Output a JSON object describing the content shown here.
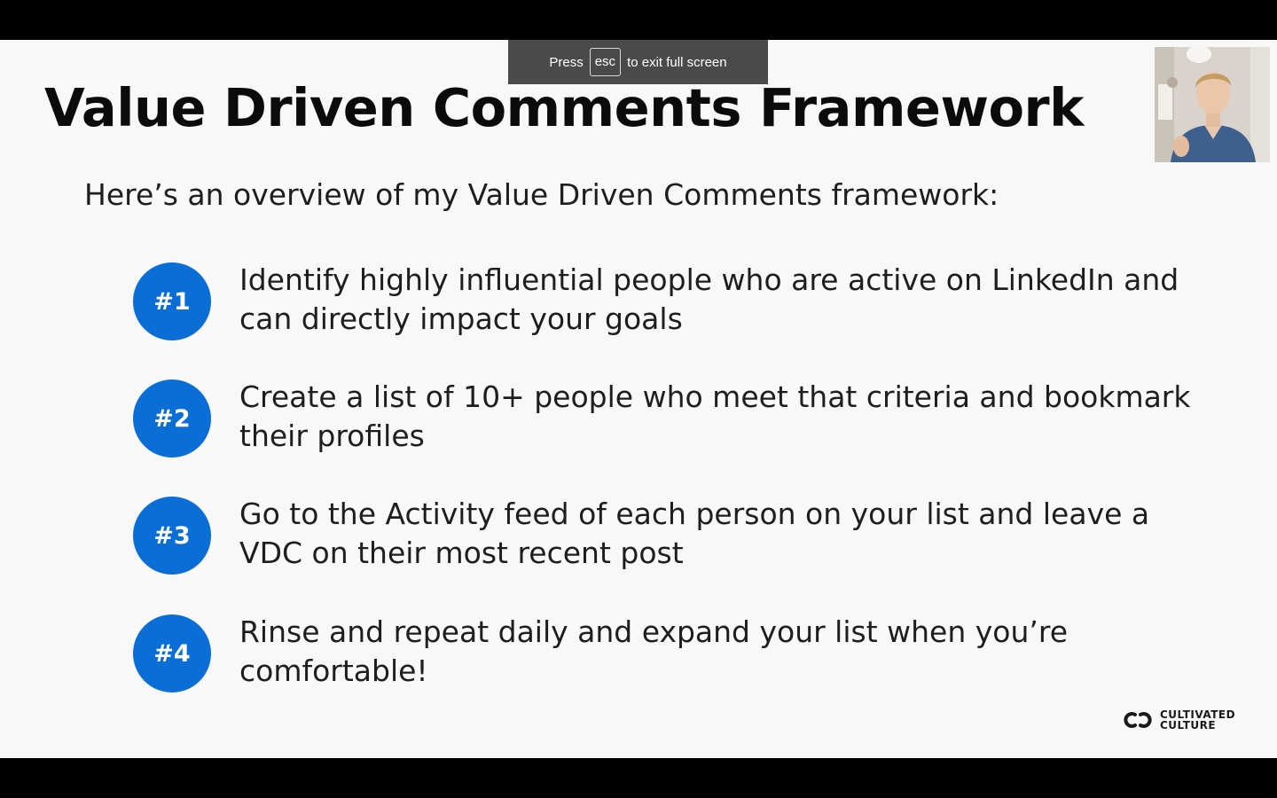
{
  "fullscreen_notice": {
    "press_label": "Press",
    "key_label": "esc",
    "suffix_label": "to exit full screen"
  },
  "slide": {
    "title": "Value Driven Comments Framework",
    "subtitle": "Here’s an overview of my Value Driven Comments framework:",
    "steps": [
      {
        "badge": "#1",
        "text": "Identify highly influential people who are active on LinkedIn and can directly impact your goals"
      },
      {
        "badge": "#2",
        "text": "Create a list of 10+ people who meet that criteria and bookmark their profiles"
      },
      {
        "badge": "#3",
        "text": "Go to the Activity feed of each person on your list and leave a VDC on their most recent post"
      },
      {
        "badge": "#4",
        "text": "Rinse and repeat daily and expand your list when you’re comfortable!"
      }
    ],
    "brand": {
      "line1": "CULTIVATED",
      "line2": "CULTURE"
    }
  },
  "colors": {
    "badge_blue": "#0a6ed6",
    "slide_background": "#f8f8f8",
    "notice_background": "#4a4a4a"
  }
}
